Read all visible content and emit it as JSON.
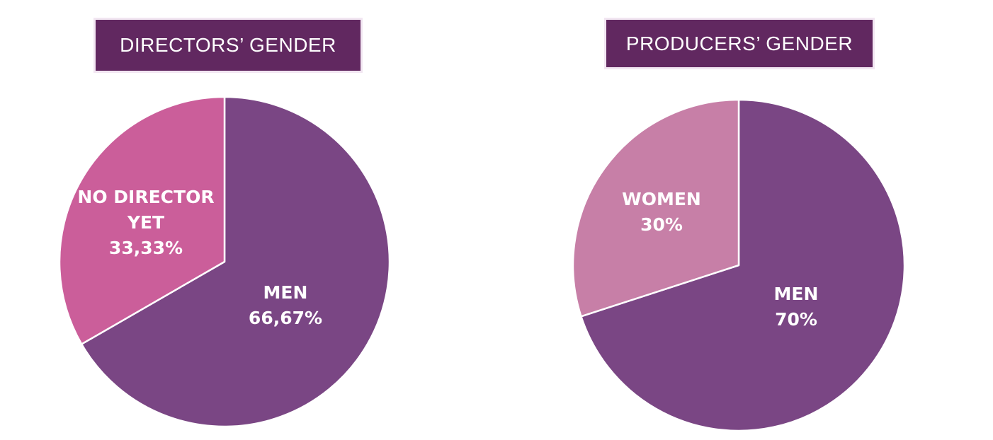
{
  "chart_data": [
    {
      "type": "pie",
      "title": "DIRECTORS’ GENDER",
      "slices": [
        {
          "label_lines": [
            "MEN",
            "66,67%"
          ],
          "value": 66.67,
          "color": "#7a4684"
        },
        {
          "label_lines": [
            "NO DIRECTOR",
            "YET",
            "33,33%"
          ],
          "value": 33.33,
          "color": "#cb5e9a"
        }
      ]
    },
    {
      "type": "pie",
      "title": "PRODUCERS’ GENDER",
      "slices": [
        {
          "label_lines": [
            "MEN",
            "70%"
          ],
          "value": 70,
          "color": "#7a4684"
        },
        {
          "label_lines": [
            "WOMEN",
            "30%"
          ],
          "value": 30,
          "color": "#c77fa7"
        }
      ]
    }
  ]
}
